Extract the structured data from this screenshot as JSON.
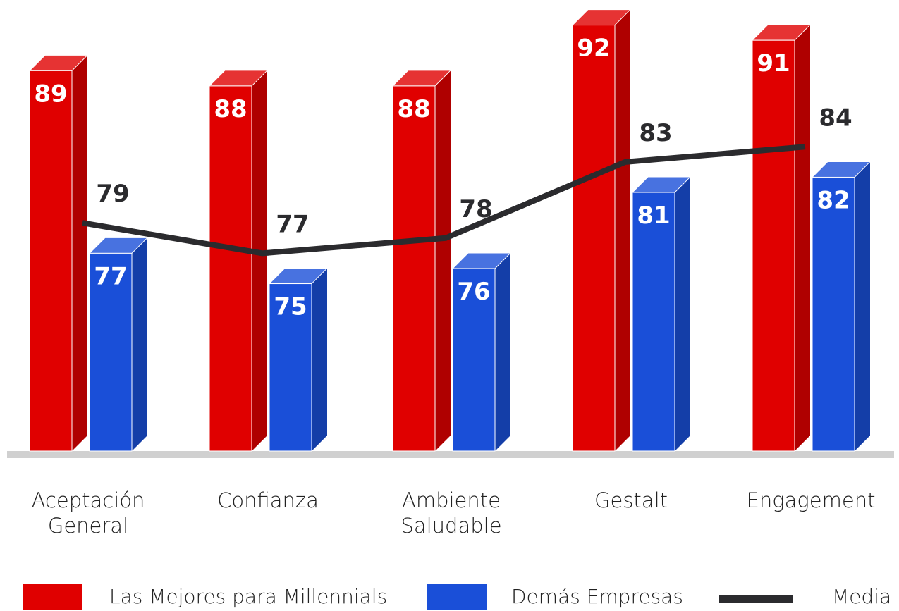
{
  "chart_data": {
    "type": "bar",
    "categories": [
      "Aceptación\nGeneral",
      "Confianza",
      "Ambiente\nSaludable",
      "Gestalt",
      "Engagement"
    ],
    "series": [
      {
        "name": "Las Mejores para Millennials",
        "color": "#e00000",
        "values": [
          89,
          88,
          88,
          92,
          91
        ]
      },
      {
        "name": "Demás Empresas",
        "color": "#1a4fd8",
        "values": [
          77,
          75,
          76,
          81,
          82
        ]
      },
      {
        "name": "Media",
        "type": "line",
        "color": "#2b2b2e",
        "values": [
          79,
          77,
          78,
          83,
          84
        ]
      }
    ],
    "ylim": [
      64,
      93
    ]
  }
}
